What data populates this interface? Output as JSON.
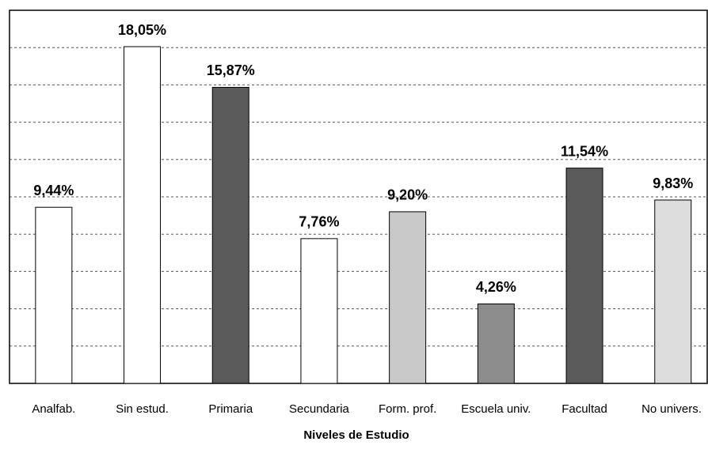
{
  "chart_data": {
    "type": "bar",
    "x_label": "Niveles de Estudio",
    "categories": [
      "Analfab.",
      "Sin estud.",
      "Primaria",
      "Secundaria",
      "Form. prof.",
      "Escuela univ.",
      "Facultad",
      "No univers."
    ],
    "values": [
      9.44,
      18.05,
      15.87,
      7.76,
      9.2,
      4.26,
      11.54,
      9.83
    ],
    "value_labels": [
      "9,44%",
      "18,05%",
      "15,87%",
      "7,76%",
      "9,20%",
      "4,26%",
      "11,54%",
      "9,83%"
    ],
    "colors": [
      "#ffffff",
      "#ffffff",
      "#5a5a5a",
      "#ffffff",
      "#c8c8c8",
      "#8c8c8c",
      "#5a5a5a",
      "#dcdcdc"
    ],
    "ylim": [
      0,
      20
    ],
    "yticks": [
      0,
      2,
      4,
      6,
      8,
      10,
      12,
      14,
      16,
      18,
      20
    ],
    "grid": true
  }
}
